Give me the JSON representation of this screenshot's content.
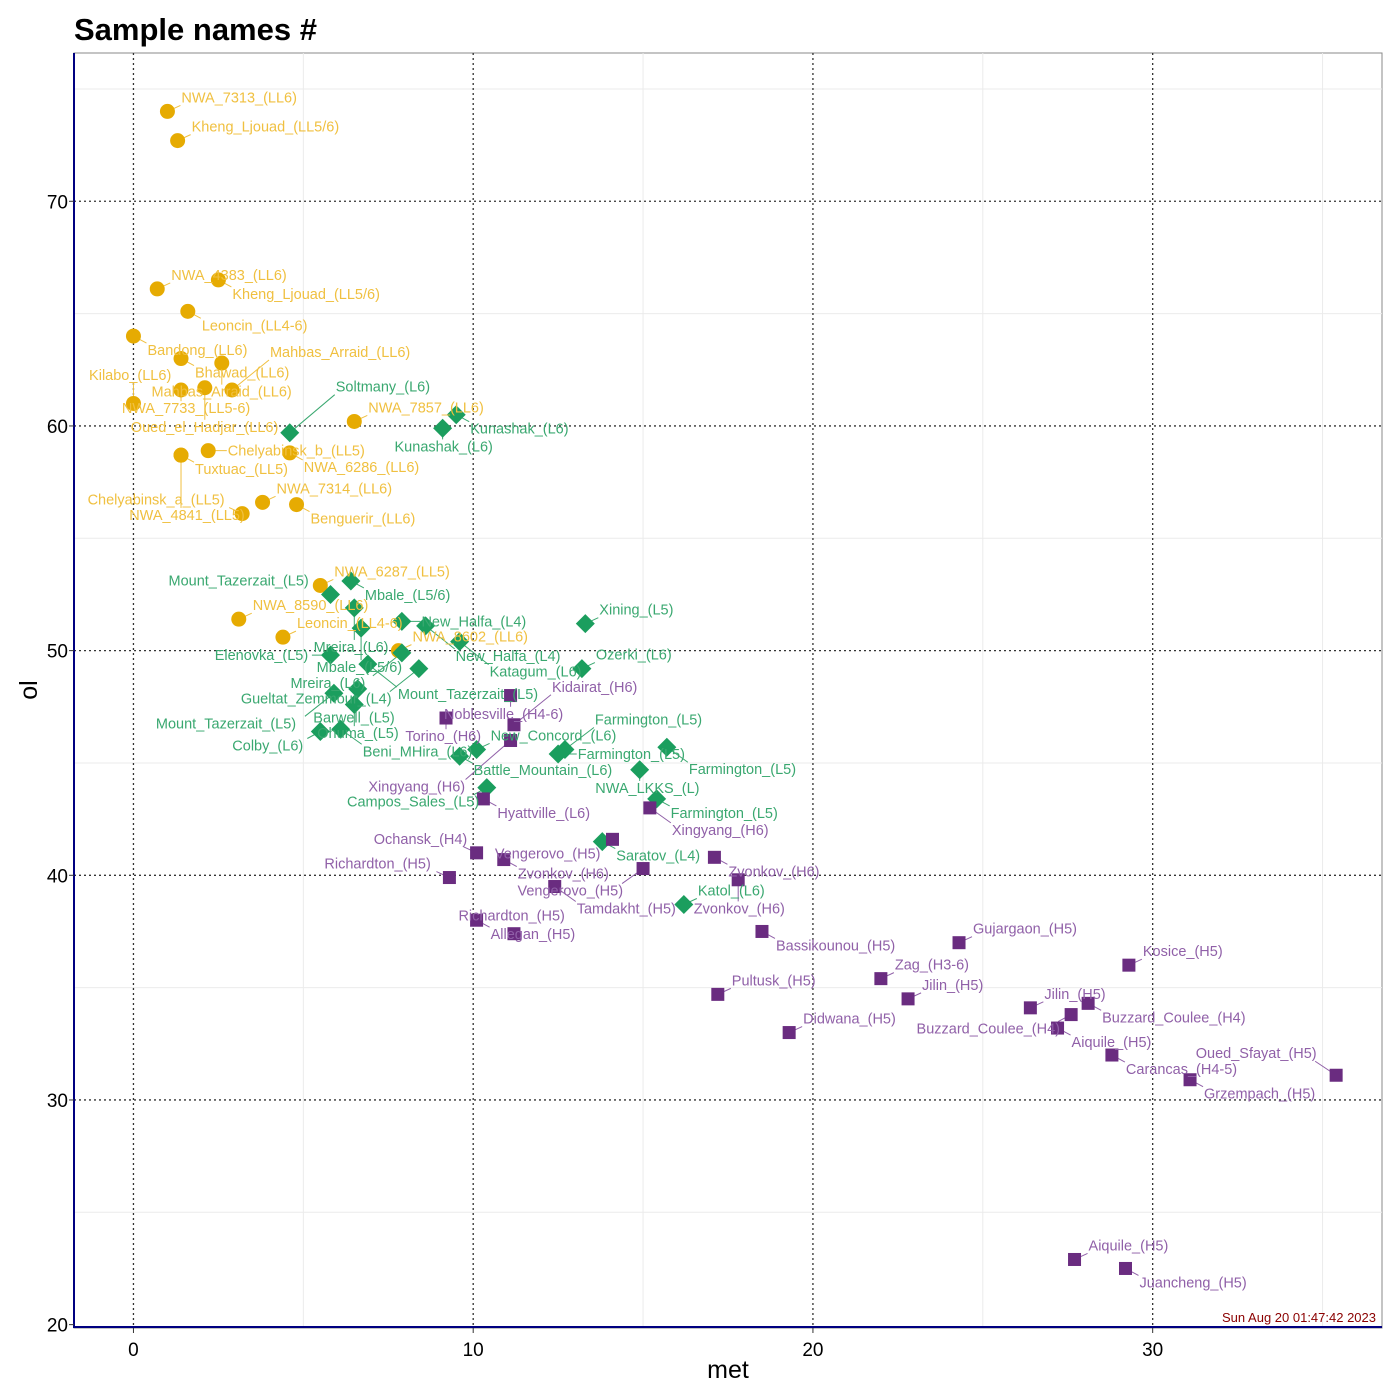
{
  "chart_data": {
    "type": "scatter",
    "title": "Sample names #",
    "xlabel": "met",
    "ylabel": "ol",
    "xlim": [
      -1.75,
      36.75
    ],
    "ylim": [
      19.85,
      76.6
    ],
    "xticks": [
      0,
      10,
      20,
      30
    ],
    "yticks": [
      20,
      30,
      40,
      50,
      60,
      70
    ],
    "grid": true,
    "legend": "none",
    "timestamp": "Sun Aug 20 01:47:42 2023",
    "colors": {
      "LL": "#e6ab02",
      "L": "#1b9e5e",
      "H": "#6a2c80",
      "LL_label": "#f0c040",
      "L_label": "#3aa870",
      "H_label": "#9060a8",
      "frame": "#000080",
      "stamp": "#8b0000"
    },
    "series": [
      {
        "group": "LL",
        "marker": "circle",
        "points": [
          {
            "x": 1.0,
            "y": 74.0,
            "label": "NWA_7313_(LL6)"
          },
          {
            "x": 1.3,
            "y": 72.7,
            "label": "Kheng_Ljouad_(LL5/6)"
          },
          {
            "x": 0.7,
            "y": 66.1,
            "label": "NWA_4383_(LL6)"
          },
          {
            "x": 2.5,
            "y": 66.5,
            "label": "Kheng_Ljouad_(LL5/6)"
          },
          {
            "x": 1.6,
            "y": 65.1,
            "label": "Leoncin_(LL4-6)"
          },
          {
            "x": 0.0,
            "y": 64.0,
            "label": "Bandong_(LL6)"
          },
          {
            "x": 1.4,
            "y": 63.0,
            "label": "Bhawad_(LL6)"
          },
          {
            "x": 2.6,
            "y": 62.8,
            "label": "Mahbas_Arraid_(LL6)"
          },
          {
            "x": 1.4,
            "y": 61.6,
            "label": "NWA_7733_(LL5-6)"
          },
          {
            "x": 2.1,
            "y": 61.7,
            "label": "Oued_el_Hadjar_(LL6)"
          },
          {
            "x": 2.9,
            "y": 61.6,
            "label": "Mahbas_Arraid_(LL6)"
          },
          {
            "x": 0.0,
            "y": 61.0,
            "label": "Kilabo_(LL6)"
          },
          {
            "x": 6.5,
            "y": 60.2,
            "label": "NWA_7857_(LL6)"
          },
          {
            "x": 1.4,
            "y": 58.7,
            "label": "Tuxtuac_(LL5)"
          },
          {
            "x": 2.2,
            "y": 58.9,
            "label": "Chelyabinsk_b_(LL5)"
          },
          {
            "x": 4.6,
            "y": 58.8,
            "label": "NWA_6286_(LL6)"
          },
          {
            "x": 3.8,
            "y": 56.6,
            "label": "NWA_7314_(LL6)"
          },
          {
            "x": 4.8,
            "y": 56.5,
            "label": "Benguerir_(LL6)"
          },
          {
            "x": 3.2,
            "y": 56.1,
            "label": "Chelyabinsk_a_(LL5)"
          },
          {
            "x": 5.5,
            "y": 52.9,
            "label": "NWA_6287_(LL5)"
          },
          {
            "x": 3.1,
            "y": 51.4,
            "label": "NWA_8590_(LL6)"
          },
          {
            "x": 4.4,
            "y": 50.6,
            "label": "Leoncin_(LL4-6)"
          },
          {
            "x": 7.8,
            "y": 50.0,
            "label": "NWA_8602_(LL6)"
          },
          {
            "x": 1.4,
            "y": 58.7,
            "label": "NWA_4841_(LL5)"
          }
        ]
      },
      {
        "group": "L",
        "marker": "diamond",
        "points": [
          {
            "x": 9.5,
            "y": 60.5,
            "label": "Kunashak_(L6)"
          },
          {
            "x": 9.1,
            "y": 59.9,
            "label": "Kunashak_(L6)"
          },
          {
            "x": 4.6,
            "y": 59.7,
            "label": "Soltmany_(L6)"
          },
          {
            "x": 6.4,
            "y": 53.1,
            "label": "Mbale_(L5/6)"
          },
          {
            "x": 5.8,
            "y": 52.5,
            "label": "Mount_Tazerzait_(L5)"
          },
          {
            "x": 6.5,
            "y": 51.9,
            "label": "Mreira_(L6)"
          },
          {
            "x": 7.9,
            "y": 51.3,
            "label": "New_Halfa_(L4)"
          },
          {
            "x": 8.6,
            "y": 51.1,
            "label": "New_Halfa_(L4)"
          },
          {
            "x": 13.3,
            "y": 51.2,
            "label": "Xining_(L5)"
          },
          {
            "x": 6.7,
            "y": 51.0,
            "label": "Mbale_(L5/6)"
          },
          {
            "x": 9.6,
            "y": 50.4,
            "label": "Katagum_(L6)"
          },
          {
            "x": 5.8,
            "y": 49.8,
            "label": "Elenovka_(L5)"
          },
          {
            "x": 7.9,
            "y": 49.9,
            "label": "Mreira_(L6)"
          },
          {
            "x": 6.9,
            "y": 49.4,
            "label": "Mount_Tazerzait_(L5)"
          },
          {
            "x": 8.4,
            "y": 49.2,
            "label": "Gueltat_Zemmour_(L4)"
          },
          {
            "x": 13.2,
            "y": 49.2,
            "label": "Ozerki_(L6)"
          },
          {
            "x": 6.6,
            "y": 48.3,
            "label": "Barwell_(L5)"
          },
          {
            "x": 5.9,
            "y": 48.1,
            "label": "Mount_Tazerzait_(L5)"
          },
          {
            "x": 6.5,
            "y": 47.6,
            "label": "Ohuma_(L5)"
          },
          {
            "x": 5.5,
            "y": 46.4,
            "label": "Colby_(L6)"
          },
          {
            "x": 6.1,
            "y": 46.5,
            "label": "Beni_MHira_(L6)"
          },
          {
            "x": 10.1,
            "y": 45.6,
            "label": "New_Concord_(L6)"
          },
          {
            "x": 9.6,
            "y": 45.3,
            "label": "Battle_Mountain_(L6)"
          },
          {
            "x": 12.5,
            "y": 45.4,
            "label": "Farmington_(L5)"
          },
          {
            "x": 12.7,
            "y": 45.6,
            "label": "Farmington_(L5)"
          },
          {
            "x": 15.7,
            "y": 45.7,
            "label": "Farmington_(L5)"
          },
          {
            "x": 14.9,
            "y": 44.7,
            "label": "NWA_LKKS_(L)"
          },
          {
            "x": 10.4,
            "y": 43.9,
            "label": "Campos_Sales_(L5)"
          },
          {
            "x": 15.4,
            "y": 43.4,
            "label": "Farmington_(L5)"
          },
          {
            "x": 13.8,
            "y": 41.5,
            "label": "Saratov_(L4)"
          },
          {
            "x": 16.2,
            "y": 38.7,
            "label": "Katol_(L6)"
          }
        ]
      },
      {
        "group": "H",
        "marker": "square",
        "points": [
          {
            "x": 11.1,
            "y": 48.0,
            "label": "Noblesville_(H4-6)"
          },
          {
            "x": 9.2,
            "y": 47.0,
            "label": "Torino_(H6)"
          },
          {
            "x": 11.2,
            "y": 46.7,
            "label": "Kidairat_(H6)"
          },
          {
            "x": 11.1,
            "y": 46.0,
            "label": "Xingyang_(H6)"
          },
          {
            "x": 10.3,
            "y": 43.4,
            "label": "Hyattville_(L6)"
          },
          {
            "x": 15.2,
            "y": 43.0,
            "label": "Xingyang_(H6)"
          },
          {
            "x": 14.1,
            "y": 41.6,
            "label": "Vengerovo_(H5)"
          },
          {
            "x": 10.1,
            "y": 41.0,
            "label": "Ochansk_(H4)"
          },
          {
            "x": 10.9,
            "y": 40.7,
            "label": "Zvonkov_(H6)"
          },
          {
            "x": 17.1,
            "y": 40.8,
            "label": "Zvonkov_(H6)"
          },
          {
            "x": 15.0,
            "y": 40.3,
            "label": "Vengerovo_(H5)"
          },
          {
            "x": 9.3,
            "y": 39.9,
            "label": "Richardton_(H5)"
          },
          {
            "x": 17.8,
            "y": 39.8,
            "label": "Zvonkov_(H6)"
          },
          {
            "x": 12.4,
            "y": 39.5,
            "label": "Tamdakht_(H5)"
          },
          {
            "x": 10.1,
            "y": 38.0,
            "label": "Allegan_(H5)"
          },
          {
            "x": 11.2,
            "y": 37.4,
            "label": "Richardton_(H5)"
          },
          {
            "x": 18.5,
            "y": 37.5,
            "label": "Bassikounou_(H5)"
          },
          {
            "x": 24.3,
            "y": 37.0,
            "label": "Gujargaon_(H5)"
          },
          {
            "x": 29.3,
            "y": 36.0,
            "label": "Kosice_(H5)"
          },
          {
            "x": 22.0,
            "y": 35.4,
            "label": "Zag_(H3-6)"
          },
          {
            "x": 17.2,
            "y": 34.7,
            "label": "Pultusk_(H5)"
          },
          {
            "x": 22.8,
            "y": 34.5,
            "label": "Jilin_(H5)"
          },
          {
            "x": 26.4,
            "y": 34.1,
            "label": "Jilin_(H5)"
          },
          {
            "x": 28.1,
            "y": 34.3,
            "label": "Buzzard_Coulee_(H4)"
          },
          {
            "x": 27.6,
            "y": 33.8,
            "label": "Buzzard_Coulee_(H4)"
          },
          {
            "x": 27.2,
            "y": 33.2,
            "label": "Aiquile_(H5)"
          },
          {
            "x": 19.3,
            "y": 33.0,
            "label": "Didwana_(H5)"
          },
          {
            "x": 28.8,
            "y": 32.0,
            "label": "Carancas_(H4-5)"
          },
          {
            "x": 31.1,
            "y": 30.9,
            "label": "Grzempach_(H5)"
          },
          {
            "x": 35.4,
            "y": 31.1,
            "label": "Oued_Sfayat_(H5)"
          },
          {
            "x": 27.7,
            "y": 22.9,
            "label": "Aiquile_(H5)"
          },
          {
            "x": 29.2,
            "y": 22.5,
            "label": "Juancheng_(H5)"
          }
        ]
      }
    ]
  }
}
